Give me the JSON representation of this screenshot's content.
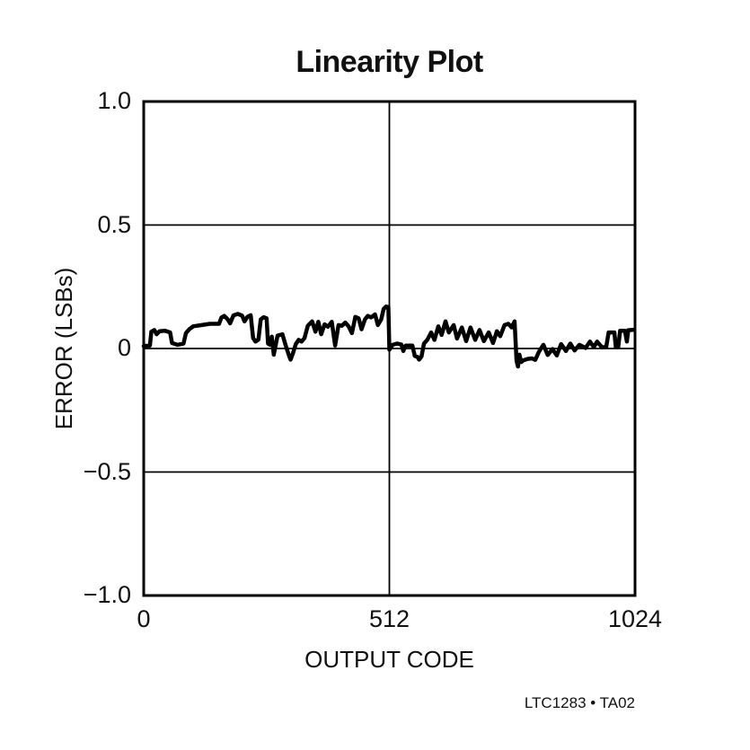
{
  "page": {
    "background": "#ffffff",
    "ink_color": "#111111"
  },
  "footer": {
    "label": "LTC1283 • TA02"
  },
  "chart_data": {
    "type": "line",
    "title": "Linearity Plot",
    "xlabel": "OUTPUT CODE",
    "ylabel": "ERROR (LSBs)",
    "xlim": [
      0,
      1024
    ],
    "ylim": [
      -1.0,
      1.0
    ],
    "grid": {
      "x": [
        512
      ],
      "y": [
        0.5,
        0,
        -0.5
      ]
    },
    "legend": "none",
    "line_color": "#000000",
    "frame_color": "#000000",
    "xticks": [
      {
        "value": 0,
        "label": "0"
      },
      {
        "value": 512,
        "label": "512"
      },
      {
        "value": 1024,
        "label": "1024"
      }
    ],
    "yticks": [
      {
        "value": 1.0,
        "label": "1.0"
      },
      {
        "value": 0.5,
        "label": "0.5"
      },
      {
        "value": 0,
        "label": "0"
      },
      {
        "value": -0.5,
        "label": "−0.5"
      },
      {
        "value": -1.0,
        "label": "−1.0"
      }
    ],
    "series": [
      {
        "name": "linearity-error",
        "points": [
          [
            0,
            0.01
          ],
          [
            13,
            0.012
          ],
          [
            16,
            0.068
          ],
          [
            22,
            0.075
          ],
          [
            27,
            0.058
          ],
          [
            33,
            0.07
          ],
          [
            44,
            0.072
          ],
          [
            55,
            0.065
          ],
          [
            59,
            0.022
          ],
          [
            70,
            0.015
          ],
          [
            83,
            0.02
          ],
          [
            88,
            0.062
          ],
          [
            95,
            0.078
          ],
          [
            103,
            0.09
          ],
          [
            118,
            0.094
          ],
          [
            138,
            0.1
          ],
          [
            157,
            0.1
          ],
          [
            162,
            0.125
          ],
          [
            168,
            0.132
          ],
          [
            175,
            0.118
          ],
          [
            180,
            0.102
          ],
          [
            187,
            0.134
          ],
          [
            196,
            0.14
          ],
          [
            205,
            0.133
          ],
          [
            210,
            0.11
          ],
          [
            216,
            0.128
          ],
          [
            223,
            0.135
          ],
          [
            228,
            0.042
          ],
          [
            233,
            0.028
          ],
          [
            239,
            0.036
          ],
          [
            244,
            0.118
          ],
          [
            250,
            0.127
          ],
          [
            256,
            0.122
          ],
          [
            259,
            0.02
          ],
          [
            263,
            0.015
          ],
          [
            267,
            0.048
          ],
          [
            271,
            -0.025
          ],
          [
            279,
            0.052
          ],
          [
            289,
            0.058
          ],
          [
            296,
            0.012
          ],
          [
            303,
            -0.03
          ],
          [
            306,
            -0.045
          ],
          [
            311,
            -0.02
          ],
          [
            317,
            0.018
          ],
          [
            323,
            0.035
          ],
          [
            329,
            0.028
          ],
          [
            335,
            0.042
          ],
          [
            342,
            0.092
          ],
          [
            351,
            0.11
          ],
          [
            358,
            0.068
          ],
          [
            364,
            0.108
          ],
          [
            370,
            0.058
          ],
          [
            377,
            0.098
          ],
          [
            384,
            0.088
          ],
          [
            392,
            0.108
          ],
          [
            399,
            0.012
          ],
          [
            406,
            0.095
          ],
          [
            413,
            0.092
          ],
          [
            420,
            0.105
          ],
          [
            427,
            0.09
          ],
          [
            434,
            0.062
          ],
          [
            441,
            0.128
          ],
          [
            448,
            0.122
          ],
          [
            454,
            0.078
          ],
          [
            461,
            0.118
          ],
          [
            467,
            0.132
          ],
          [
            474,
            0.126
          ],
          [
            482,
            0.138
          ],
          [
            488,
            0.095
          ],
          [
            495,
            0.118
          ],
          [
            500,
            0.16
          ],
          [
            505,
            0.17
          ],
          [
            510,
            0.168
          ],
          [
            512,
            -0.005
          ],
          [
            519,
            0.015
          ],
          [
            528,
            0.02
          ],
          [
            537,
            0.016
          ],
          [
            541,
            -0.01
          ],
          [
            546,
            0.012
          ],
          [
            560,
            0.012
          ],
          [
            565,
            -0.03
          ],
          [
            570,
            -0.033
          ],
          [
            574,
            -0.045
          ],
          [
            579,
            -0.032
          ],
          [
            584,
            0.02
          ],
          [
            591,
            0.035
          ],
          [
            599,
            0.065
          ],
          [
            606,
            0.035
          ],
          [
            614,
            0.09
          ],
          [
            621,
            0.055
          ],
          [
            629,
            0.11
          ],
          [
            636,
            0.065
          ],
          [
            646,
            0.095
          ],
          [
            653,
            0.04
          ],
          [
            663,
            0.085
          ],
          [
            672,
            0.03
          ],
          [
            681,
            0.085
          ],
          [
            691,
            0.035
          ],
          [
            700,
            0.075
          ],
          [
            709,
            0.03
          ],
          [
            719,
            0.065
          ],
          [
            728,
            0.022
          ],
          [
            736,
            0.07
          ],
          [
            743,
            0.05
          ],
          [
            752,
            0.095
          ],
          [
            760,
            0.1
          ],
          [
            767,
            0.085
          ],
          [
            773,
            0.11
          ],
          [
            777,
            -0.05
          ],
          [
            780,
            -0.073
          ],
          [
            783,
            -0.025
          ],
          [
            787,
            -0.055
          ],
          [
            791,
            -0.048
          ],
          [
            800,
            -0.042
          ],
          [
            809,
            -0.04
          ],
          [
            816,
            -0.046
          ],
          [
            824,
            -0.012
          ],
          [
            833,
            0.015
          ],
          [
            842,
            -0.026
          ],
          [
            852,
            -0.002
          ],
          [
            861,
            -0.028
          ],
          [
            870,
            0.018
          ],
          [
            880,
            -0.01
          ],
          [
            889,
            0.02
          ],
          [
            898,
            -0.008
          ],
          [
            908,
            0.015
          ],
          [
            921,
            0.002
          ],
          [
            930,
            0.028
          ],
          [
            938,
            0.006
          ],
          [
            945,
            0.028
          ],
          [
            955,
            0.005
          ],
          [
            964,
            0.006
          ],
          [
            969,
            0.065
          ],
          [
            981,
            0.065
          ],
          [
            984,
            0.006
          ],
          [
            989,
            0.006
          ],
          [
            993,
            0.072
          ],
          [
            1003,
            0.072
          ],
          [
            1007,
            0.028
          ],
          [
            1010,
            0.074
          ],
          [
            1022,
            0.076
          ]
        ]
      }
    ]
  }
}
